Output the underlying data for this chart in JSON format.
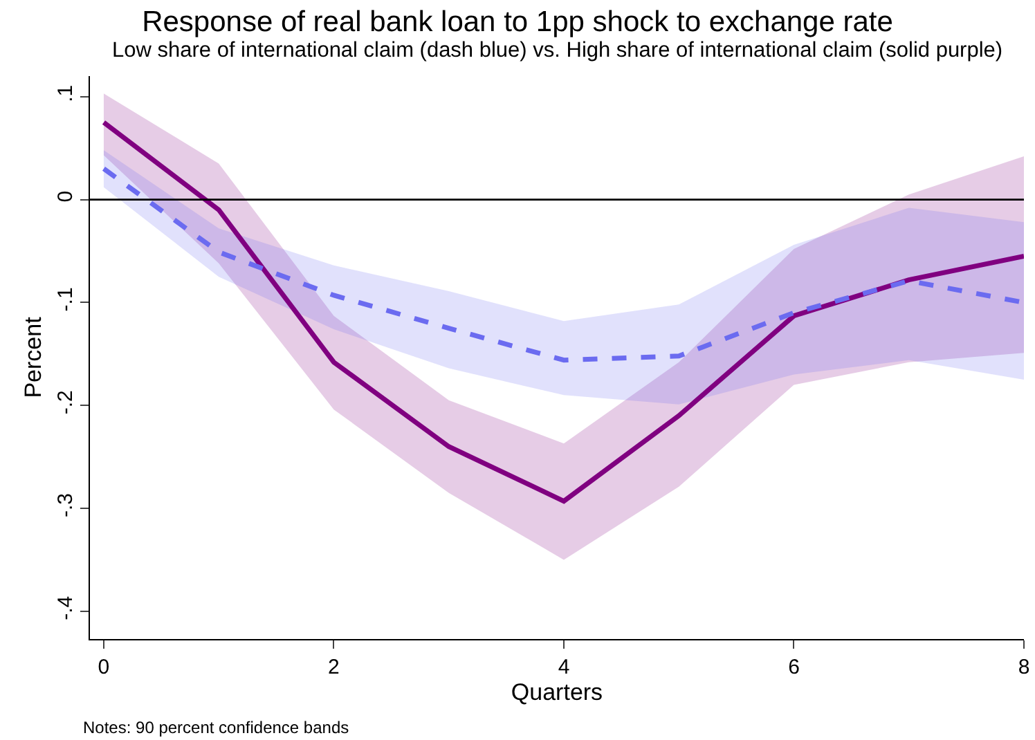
{
  "chart_data": {
    "type": "line",
    "title": "Response of real bank loan to 1pp shock to exchange rate",
    "subtitle": "Low share of international claim (dash blue) vs. High share of international claim (solid purple)",
    "xlabel": "Quarters",
    "ylabel": "Percent",
    "x": [
      0,
      1,
      2,
      3,
      4,
      5,
      6,
      7,
      8
    ],
    "series": [
      {
        "color": "#800080",
        "line_style": "solid",
        "values": [
          0.075,
          -0.01,
          -0.158,
          -0.24,
          -0.293,
          -0.21,
          -0.113,
          -0.078,
          -0.055
        ],
        "lower": [
          0.043,
          -0.062,
          -0.204,
          -0.285,
          -0.35,
          -0.279,
          -0.18,
          -0.158,
          -0.149
        ],
        "upper": [
          0.103,
          0.035,
          -0.113,
          -0.195,
          -0.237,
          -0.158,
          -0.048,
          0.005,
          0.042
        ]
      },
      {
        "color": "#6b6bf0",
        "line_style": "dashed",
        "values": [
          0.03,
          -0.051,
          -0.093,
          -0.125,
          -0.156,
          -0.152,
          -0.11,
          -0.079,
          -0.1
        ],
        "lower": [
          0.012,
          -0.075,
          -0.126,
          -0.164,
          -0.19,
          -0.199,
          -0.17,
          -0.156,
          -0.175
        ],
        "upper": [
          0.048,
          -0.028,
          -0.064,
          -0.089,
          -0.118,
          -0.102,
          -0.044,
          -0.008,
          -0.022
        ]
      }
    ],
    "xlim": [
      -0.12,
      8
    ],
    "xticks": [
      0,
      2,
      4,
      6,
      8
    ],
    "ylim": [
      -0.427,
      0.12
    ],
    "yticks": [
      {
        "value": -0.4,
        "label": "-.4"
      },
      {
        "value": -0.3,
        "label": "-.3"
      },
      {
        "value": -0.2,
        "label": "-.2"
      },
      {
        "value": -0.1,
        "label": "-.1"
      },
      0,
      {
        "value": 0.1,
        "label": ".1"
      }
    ],
    "ref_lines": [
      {
        "axis": "y",
        "value": 0,
        "color": "#000000"
      }
    ],
    "annotations": [
      "Notes: 90 percent confidence bands"
    ]
  }
}
